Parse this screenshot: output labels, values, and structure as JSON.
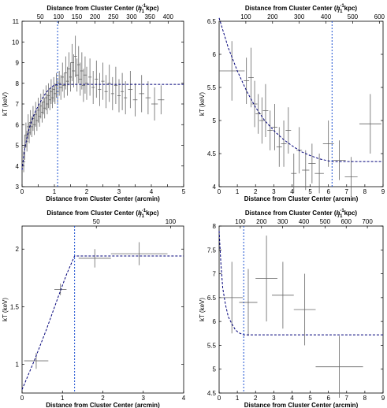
{
  "colors": {
    "data": "#666666",
    "fit": "#00007a",
    "split": "#1a4fd1"
  },
  "chart_data": [
    {
      "id": "a",
      "type": "scatter",
      "xlabel": "Distance from Cluster Center (arcmin)",
      "top_xlabel": [
        "Distance from Cluster Center (",
        "h",
        "71",
        "-1",
        " kpc)"
      ],
      "ylabel": "kT (keV)",
      "xlim": [
        0,
        5
      ],
      "ylim": [
        3,
        11
      ],
      "xticks": [
        0,
        0.5,
        1,
        1.5,
        2,
        2.5,
        3,
        3.5,
        4,
        4.5,
        5
      ],
      "xticklabels": [
        "0",
        "",
        "1",
        "",
        "2",
        "",
        "3",
        "",
        "4",
        "",
        "5"
      ],
      "yticks": [
        3,
        4,
        5,
        6,
        7,
        8,
        9,
        10,
        11
      ],
      "top_ticks": [
        50,
        100,
        150,
        200,
        250,
        300,
        350,
        400
      ],
      "top_scale_per_arcmin": 88.5,
      "split_x": 1.1,
      "fit": [
        [
          0.0,
          3.8
        ],
        [
          0.05,
          4.5
        ],
        [
          0.1,
          5.0
        ],
        [
          0.2,
          5.7
        ],
        [
          0.3,
          6.2
        ],
        [
          0.4,
          6.6
        ],
        [
          0.5,
          6.9
        ],
        [
          0.6,
          7.2
        ],
        [
          0.7,
          7.45
        ],
        [
          0.8,
          7.65
        ],
        [
          0.9,
          7.8
        ],
        [
          1.0,
          7.92
        ],
        [
          1.1,
          7.95
        ],
        [
          5.0,
          7.95
        ]
      ],
      "points": [
        [
          0.05,
          4.2,
          0.05,
          0.5
        ],
        [
          0.08,
          4.9,
          0.04,
          0.6
        ],
        [
          0.12,
          5.5,
          0.04,
          0.6
        ],
        [
          0.15,
          5.2,
          0.04,
          0.5
        ],
        [
          0.19,
          5.9,
          0.04,
          0.6
        ],
        [
          0.22,
          5.6,
          0.04,
          0.5
        ],
        [
          0.26,
          6.1,
          0.04,
          0.6
        ],
        [
          0.3,
          5.9,
          0.04,
          0.5
        ],
        [
          0.34,
          6.3,
          0.04,
          0.6
        ],
        [
          0.38,
          6.0,
          0.04,
          0.5
        ],
        [
          0.42,
          6.5,
          0.04,
          0.6
        ],
        [
          0.46,
          6.2,
          0.04,
          0.5
        ],
        [
          0.5,
          6.7,
          0.04,
          0.6
        ],
        [
          0.54,
          6.4,
          0.04,
          0.5
        ],
        [
          0.58,
          6.9,
          0.04,
          0.6
        ],
        [
          0.62,
          6.6,
          0.04,
          0.5
        ],
        [
          0.66,
          7.1,
          0.04,
          0.6
        ],
        [
          0.7,
          6.8,
          0.04,
          0.5
        ],
        [
          0.74,
          7.3,
          0.04,
          0.6
        ],
        [
          0.78,
          7.0,
          0.04,
          0.5
        ],
        [
          0.82,
          7.4,
          0.04,
          0.6
        ],
        [
          0.86,
          7.2,
          0.04,
          0.5
        ],
        [
          0.9,
          7.6,
          0.04,
          0.6
        ],
        [
          0.94,
          7.3,
          0.04,
          0.5
        ],
        [
          0.98,
          7.7,
          0.04,
          0.6
        ],
        [
          1.02,
          7.5,
          0.04,
          0.5
        ],
        [
          1.06,
          7.9,
          0.04,
          0.6
        ],
        [
          1.1,
          7.6,
          0.04,
          0.6
        ],
        [
          1.15,
          8.0,
          0.05,
          0.6
        ],
        [
          1.2,
          7.8,
          0.05,
          0.6
        ],
        [
          1.25,
          8.3,
          0.05,
          0.7
        ],
        [
          1.3,
          7.9,
          0.05,
          0.6
        ],
        [
          1.35,
          8.5,
          0.05,
          0.8
        ],
        [
          1.4,
          8.1,
          0.05,
          0.7
        ],
        [
          1.45,
          8.7,
          0.05,
          0.8
        ],
        [
          1.5,
          8.3,
          0.05,
          0.7
        ],
        [
          1.55,
          9.0,
          0.05,
          0.9
        ],
        [
          1.6,
          8.6,
          0.05,
          0.8
        ],
        [
          1.65,
          9.3,
          0.05,
          1.0
        ],
        [
          1.7,
          8.4,
          0.05,
          0.8
        ],
        [
          1.75,
          8.9,
          0.05,
          0.9
        ],
        [
          1.8,
          8.2,
          0.05,
          0.8
        ],
        [
          1.85,
          8.6,
          0.05,
          0.9
        ],
        [
          1.9,
          7.9,
          0.05,
          0.8
        ],
        [
          1.95,
          8.4,
          0.05,
          0.9
        ],
        [
          2.0,
          8.0,
          0.05,
          0.8
        ],
        [
          2.1,
          8.3,
          0.05,
          0.9
        ],
        [
          2.2,
          7.8,
          0.05,
          0.8
        ],
        [
          2.3,
          8.2,
          0.05,
          0.9
        ],
        [
          2.4,
          7.7,
          0.05,
          0.8
        ],
        [
          2.5,
          8.1,
          0.05,
          0.9
        ],
        [
          2.6,
          7.6,
          0.05,
          0.8
        ],
        [
          2.7,
          8.0,
          0.05,
          0.9
        ],
        [
          2.8,
          7.5,
          0.05,
          0.8
        ],
        [
          2.9,
          7.9,
          0.05,
          0.9
        ],
        [
          3.0,
          7.4,
          0.05,
          0.8
        ],
        [
          3.1,
          7.6,
          0.05,
          0.9
        ],
        [
          3.2,
          7.3,
          0.05,
          0.8
        ],
        [
          3.35,
          7.7,
          0.07,
          0.9
        ],
        [
          3.5,
          7.2,
          0.07,
          0.8
        ],
        [
          3.7,
          7.5,
          0.08,
          0.9
        ],
        [
          3.9,
          7.3,
          0.08,
          0.8
        ],
        [
          4.1,
          7.0,
          0.1,
          0.8
        ],
        [
          4.3,
          7.2,
          0.1,
          0.7
        ]
      ]
    },
    {
      "id": "b",
      "type": "scatter",
      "xlabel": "Distance from Cluster Center (arcmin)",
      "top_xlabel": [
        "Distance from Cluster Center (",
        "h",
        "71",
        "-1",
        " kpc)"
      ],
      "ylabel": "kT (keV)",
      "xlim": [
        0,
        9
      ],
      "ylim": [
        4,
        6.5
      ],
      "xticks": [
        0,
        1,
        2,
        3,
        4,
        5,
        6,
        7,
        8,
        9
      ],
      "xticklabels": [
        "0",
        "1",
        "2",
        "3",
        "4",
        "5",
        "6",
        "7",
        "8",
        "9"
      ],
      "yticks": [
        4,
        4.5,
        5,
        5.5,
        6,
        6.5
      ],
      "top_ticks": [
        100,
        200,
        300,
        400,
        500,
        600
      ],
      "top_scale_per_arcmin": 68.2,
      "split_x": 6.2,
      "fit": [
        [
          0.0,
          6.55
        ],
        [
          0.5,
          6.1
        ],
        [
          1.0,
          5.75
        ],
        [
          1.5,
          5.45
        ],
        [
          2.0,
          5.2
        ],
        [
          2.5,
          5.0
        ],
        [
          3.0,
          4.85
        ],
        [
          3.5,
          4.72
        ],
        [
          4.0,
          4.62
        ],
        [
          4.5,
          4.53
        ],
        [
          5.0,
          4.47
        ],
        [
          5.5,
          4.42
        ],
        [
          6.0,
          4.39
        ],
        [
          6.2,
          4.38
        ],
        [
          9.0,
          4.38
        ]
      ],
      "points": [
        [
          0.7,
          5.75,
          0.7,
          0.45
        ],
        [
          1.5,
          5.6,
          0.15,
          0.35
        ],
        [
          1.75,
          5.65,
          0.15,
          0.45
        ],
        [
          1.95,
          5.25,
          0.15,
          0.35
        ],
        [
          2.15,
          5.1,
          0.15,
          0.3
        ],
        [
          2.35,
          5.0,
          0.15,
          0.35
        ],
        [
          2.55,
          5.15,
          0.15,
          0.4
        ],
        [
          2.8,
          4.85,
          0.15,
          0.3
        ],
        [
          3.05,
          4.9,
          0.15,
          0.35
        ],
        [
          3.3,
          4.6,
          0.15,
          0.3
        ],
        [
          3.55,
          4.65,
          0.15,
          0.35
        ],
        [
          3.8,
          4.85,
          0.15,
          0.35
        ],
        [
          4.1,
          4.2,
          0.15,
          0.3
        ],
        [
          4.4,
          4.55,
          0.15,
          0.35
        ],
        [
          4.75,
          4.25,
          0.2,
          0.3
        ],
        [
          5.1,
          4.35,
          0.2,
          0.3
        ],
        [
          5.5,
          4.2,
          0.25,
          0.3
        ],
        [
          6.0,
          4.65,
          0.3,
          0.35
        ],
        [
          6.6,
          4.4,
          0.35,
          0.3
        ],
        [
          7.25,
          4.15,
          0.35,
          0.3
        ],
        [
          8.3,
          4.95,
          0.6,
          0.45
        ]
      ]
    },
    {
      "id": "c",
      "type": "scatter",
      "xlabel": "Distance from Cluster Center (arcmin)",
      "top_xlabel": [
        "Distance from Cluster Center (",
        "h",
        "71",
        "-1",
        " kpc)"
      ],
      "ylabel": "kT (keV)",
      "xlim": [
        0,
        4
      ],
      "ylim": [
        0.75,
        2.2
      ],
      "xticks": [
        0,
        1,
        2,
        3,
        4
      ],
      "xticklabels": [
        "0",
        "1",
        "2",
        "3",
        "4"
      ],
      "yticks": [
        1,
        1.5,
        2
      ],
      "top_ticks": [
        50,
        100
      ],
      "top_scale_per_arcmin": 27.2,
      "split_x": 1.3,
      "fit": [
        [
          0.0,
          0.78
        ],
        [
          0.3,
          1.03
        ],
        [
          0.6,
          1.3
        ],
        [
          0.9,
          1.59
        ],
        [
          1.1,
          1.78
        ],
        [
          1.3,
          1.94
        ],
        [
          4.0,
          1.94
        ]
      ],
      "points": [
        [
          0.35,
          1.03,
          0.3,
          0.07
        ],
        [
          0.95,
          1.65,
          0.15,
          0.05
        ],
        [
          1.8,
          1.92,
          0.4,
          0.08
        ],
        [
          2.9,
          1.96,
          0.7,
          0.1
        ]
      ]
    },
    {
      "id": "d",
      "type": "scatter",
      "xlabel": "Distance from Cluster Center (arcmin)",
      "top_xlabel": [
        "Distance from Cluster Center (",
        "h",
        "71",
        "-1",
        " kpc)"
      ],
      "ylabel": "kT (keV)",
      "xlim": [
        0,
        9
      ],
      "ylim": [
        4.5,
        8
      ],
      "xticks": [
        0,
        1,
        2,
        3,
        4,
        5,
        6,
        7,
        8,
        9
      ],
      "xticklabels": [
        "0",
        "1",
        "2",
        "3",
        "4",
        "5",
        "6",
        "7",
        "8",
        "9"
      ],
      "yticks": [
        4.5,
        5,
        5.5,
        6,
        6.5,
        7,
        7.5,
        8
      ],
      "top_ticks": [
        100,
        200,
        300,
        400,
        500,
        600,
        700
      ],
      "top_scale_per_arcmin": 86.0,
      "split_x": 1.35,
      "fit": [
        [
          0.0,
          7.9
        ],
        [
          0.1,
          7.2
        ],
        [
          0.2,
          6.7
        ],
        [
          0.35,
          6.35
        ],
        [
          0.5,
          6.1
        ],
        [
          0.7,
          5.95
        ],
        [
          0.9,
          5.82
        ],
        [
          1.1,
          5.76
        ],
        [
          1.35,
          5.72
        ],
        [
          9.0,
          5.72
        ]
      ],
      "points": [
        [
          0.7,
          6.5,
          0.6,
          0.75
        ],
        [
          1.6,
          6.4,
          0.5,
          0.7
        ],
        [
          2.6,
          6.9,
          0.6,
          0.9
        ],
        [
          3.5,
          6.55,
          0.6,
          0.7
        ],
        [
          4.7,
          6.25,
          0.6,
          0.75
        ],
        [
          6.6,
          5.05,
          1.3,
          0.65
        ]
      ]
    }
  ]
}
